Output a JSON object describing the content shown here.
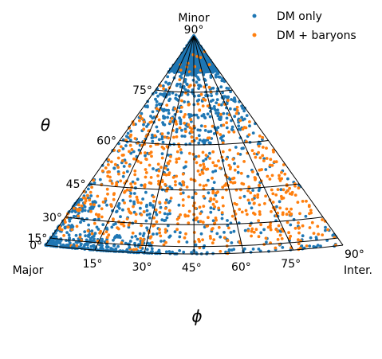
{
  "chart_data": {
    "type": "scatter",
    "projection": "octant-of-sphere (theta up, phi across)",
    "x_axis": {
      "variable": "phi",
      "label": "ϕ",
      "range_deg": [
        0,
        90
      ],
      "ticks": [
        {
          "value": 15,
          "label": "15°"
        },
        {
          "value": 30,
          "label": "30°"
        },
        {
          "value": 45,
          "label": "45°"
        },
        {
          "value": 60,
          "label": "60°"
        },
        {
          "value": 75,
          "label": "75°"
        },
        {
          "value": 90,
          "label": "90°"
        }
      ]
    },
    "y_axis": {
      "variable": "theta",
      "label": "θ",
      "range_deg": [
        0,
        90
      ],
      "ticks": [
        {
          "value": 0,
          "label": "0°"
        },
        {
          "value": 15,
          "label": "15°"
        },
        {
          "value": 30,
          "label": "30°"
        },
        {
          "value": 45,
          "label": "45°"
        },
        {
          "value": 60,
          "label": "60°"
        },
        {
          "value": 75,
          "label": "75°"
        },
        {
          "value": 90,
          "label": "90°"
        }
      ]
    },
    "axis_names": {
      "major": "Major",
      "intermediate": "Inter.",
      "minor": "Minor"
    },
    "grid": true,
    "grid_step_deg": 15,
    "legend": {
      "position": "top-right"
    },
    "series": [
      {
        "name": "DM only",
        "color": "#1f77b4",
        "approx_count": 1400,
        "density_description": "strongly concentrated toward the Minor pole (theta > 75°) and the Major corner (theta < 30°, phi < 20°); sparse near phi = 90°",
        "sample_points_phi_theta": [
          [
            2,
            80
          ],
          [
            10,
            84
          ],
          [
            20,
            82
          ],
          [
            30,
            86
          ],
          [
            40,
            80
          ],
          [
            55,
            83
          ],
          [
            70,
            85
          ],
          [
            85,
            81
          ],
          [
            5,
            2
          ],
          [
            8,
            6
          ],
          [
            3,
            10
          ],
          [
            12,
            4
          ],
          [
            6,
            14
          ],
          [
            15,
            8
          ],
          [
            10,
            20
          ],
          [
            4,
            25
          ],
          [
            25,
            12
          ],
          [
            35,
            40
          ],
          [
            50,
            55
          ],
          [
            65,
            30
          ],
          [
            80,
            20
          ],
          [
            45,
            10
          ],
          [
            20,
            45
          ],
          [
            60,
            65
          ]
        ]
      },
      {
        "name": "DM + baryons",
        "color": "#ff7f0e",
        "approx_count": 650,
        "density_description": "more uniformly spread, relatively more points at mid theta and large phi, fewer at the Minor pole",
        "sample_points_phi_theta": [
          [
            75,
            40
          ],
          [
            85,
            20
          ],
          [
            60,
            50
          ],
          [
            45,
            35
          ],
          [
            30,
            25
          ],
          [
            20,
            55
          ],
          [
            10,
            40
          ],
          [
            70,
            10
          ],
          [
            88,
            5
          ],
          [
            50,
            70
          ],
          [
            35,
            65
          ],
          [
            65,
            75
          ],
          [
            80,
            55
          ],
          [
            15,
            15
          ],
          [
            40,
            48
          ],
          [
            55,
            22
          ]
        ]
      }
    ]
  }
}
